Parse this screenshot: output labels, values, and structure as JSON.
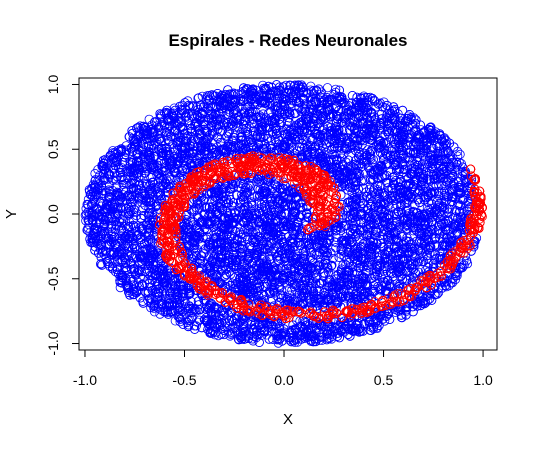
{
  "chart_data": {
    "type": "scatter",
    "title": "Espirales - Redes Neuronales",
    "xlabel": "X",
    "ylabel": "Y",
    "xlim": [
      -1.03,
      1.07
    ],
    "ylim": [
      -1.05,
      1.05
    ],
    "x_ticks": [
      "-1.0",
      "-0.5",
      "0.0",
      "0.5",
      "1.0"
    ],
    "y_ticks": [
      "-1.0",
      "-0.5",
      "0.0",
      "0.5",
      "1.0"
    ],
    "grid": false,
    "legend": "none",
    "marker": "open circle",
    "series": [
      {
        "color": "#0000FF",
        "region": "filled disk of radius 1 centered at (0, 0), excluding the red spiral band",
        "approx_points": 9000
      },
      {
        "color": "#FF0000",
        "region": "spiral band winding from the center outward to about radius 1",
        "approx_points": 2800
      }
    ]
  }
}
